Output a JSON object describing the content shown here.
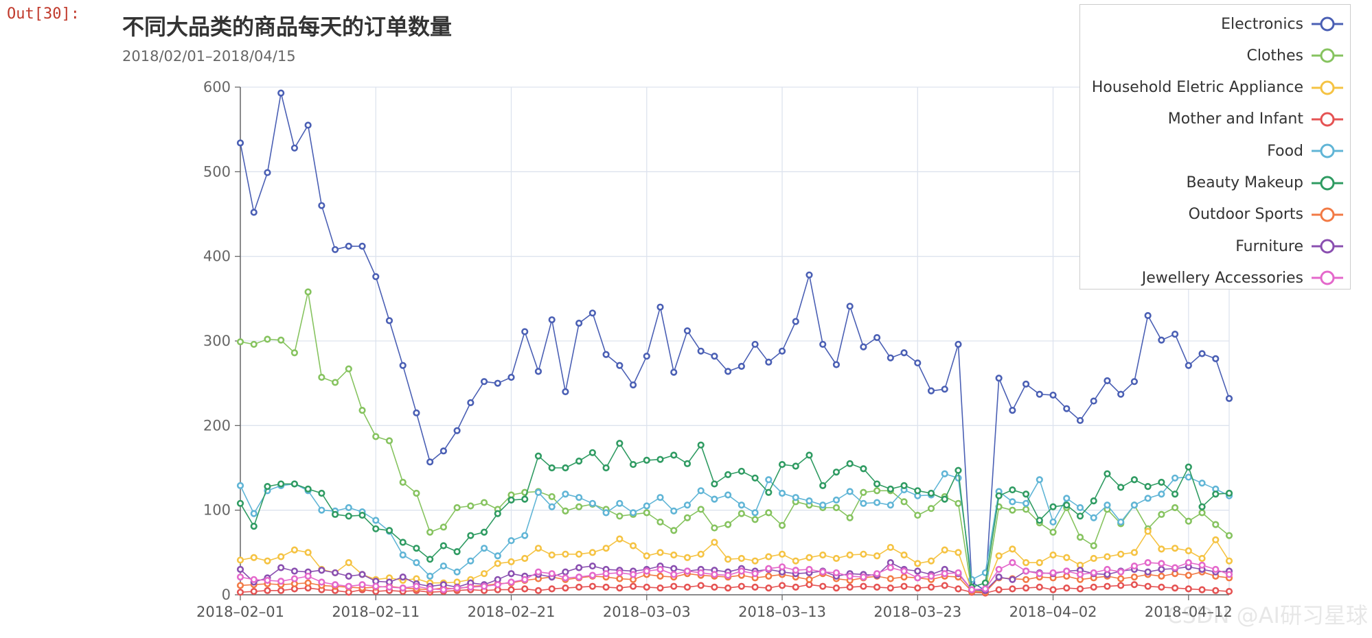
{
  "cell": {
    "prompt": "Out[30]:"
  },
  "watermark": "CSDN @AI研习星球",
  "chart_data": {
    "type": "line",
    "title": "不同大品类的商品每天的订单数量",
    "subtitle": "2018/02/01–2018/04/15",
    "xlabel": "",
    "ylabel": "",
    "ylim": [
      0,
      600
    ],
    "yticks": [
      0,
      100,
      200,
      300,
      400,
      500,
      600
    ],
    "x_start": "2018-02-01",
    "x_count": 74,
    "xtick_labels": [
      "2018–02–01",
      "2018–02–11",
      "2018–02–21",
      "2018–03–03",
      "2018–03–13",
      "2018–03–23",
      "2018–04–02",
      "2018–04–12"
    ],
    "grid": true,
    "legend_position": "top-right",
    "series": [
      {
        "name": "Electronics",
        "color": "#4a5fb4",
        "values": [
          534,
          452,
          499,
          593,
          528,
          555,
          460,
          408,
          412,
          412,
          376,
          324,
          271,
          215,
          157,
          170,
          194,
          227,
          252,
          250,
          257,
          311,
          264,
          325,
          240,
          321,
          333,
          284,
          271,
          248,
          282,
          340,
          263,
          312,
          288,
          282,
          264,
          270,
          296,
          275,
          288,
          323,
          378,
          296,
          272,
          341,
          293,
          304,
          280,
          286,
          274,
          241,
          243,
          296,
          15,
          5,
          256,
          218,
          249,
          237,
          236,
          220,
          206,
          229,
          253,
          237,
          252,
          330,
          301,
          308,
          271,
          285,
          279,
          232
        ]
      },
      {
        "name": "Clothes",
        "color": "#86c35f",
        "values": [
          299,
          296,
          302,
          301,
          286,
          358,
          257,
          251,
          267,
          218,
          187,
          182,
          133,
          120,
          74,
          80,
          103,
          105,
          109,
          101,
          118,
          121,
          122,
          116,
          99,
          104,
          107,
          101,
          93,
          95,
          97,
          86,
          76,
          91,
          101,
          79,
          83,
          96,
          89,
          97,
          82,
          110,
          106,
          103,
          103,
          91,
          121,
          123,
          123,
          110,
          94,
          102,
          116,
          108,
          4,
          4,
          104,
          100,
          101,
          85,
          74,
          103,
          68,
          58,
          101,
          84,
          106,
          78,
          95,
          103,
          87,
          97,
          83,
          70
        ]
      },
      {
        "name": "Household Eletric Appliance",
        "color": "#f5c343",
        "values": [
          41,
          44,
          40,
          45,
          53,
          50,
          30,
          26,
          38,
          24,
          18,
          20,
          17,
          19,
          14,
          14,
          15,
          18,
          25,
          37,
          39,
          43,
          55,
          47,
          48,
          48,
          50,
          55,
          66,
          58,
          46,
          50,
          47,
          44,
          48,
          62,
          42,
          43,
          40,
          45,
          48,
          40,
          44,
          47,
          43,
          47,
          48,
          46,
          56,
          47,
          37,
          40,
          53,
          50,
          5,
          6,
          46,
          54,
          38,
          38,
          47,
          44,
          35,
          43,
          45,
          48,
          50,
          75,
          54,
          55,
          52,
          43,
          65,
          40
        ]
      },
      {
        "name": "Mother and Infant",
        "color": "#e55353",
        "values": [
          3,
          4,
          5,
          5,
          7,
          8,
          6,
          5,
          3,
          6,
          4,
          5,
          4,
          5,
          3,
          4,
          5,
          6,
          5,
          6,
          6,
          7,
          5,
          7,
          8,
          9,
          10,
          9,
          8,
          10,
          9,
          8,
          10,
          9,
          11,
          9,
          8,
          10,
          9,
          8,
          11,
          9,
          12,
          10,
          8,
          9,
          10,
          9,
          8,
          10,
          8,
          9,
          11,
          7,
          3,
          2,
          6,
          7,
          8,
          9,
          6,
          8,
          7,
          9,
          10,
          11,
          12,
          10,
          9,
          8,
          7,
          6,
          5,
          4
        ]
      },
      {
        "name": "Food",
        "color": "#60b5d6",
        "values": [
          129,
          96,
          123,
          129,
          131,
          123,
          100,
          99,
          103,
          98,
          88,
          75,
          47,
          38,
          22,
          34,
          27,
          40,
          55,
          46,
          64,
          70,
          121,
          104,
          119,
          115,
          108,
          97,
          108,
          97,
          105,
          115,
          99,
          106,
          123,
          113,
          118,
          106,
          97,
          136,
          120,
          115,
          111,
          106,
          112,
          122,
          108,
          109,
          106,
          124,
          117,
          118,
          143,
          138,
          18,
          26,
          122,
          110,
          108,
          136,
          86,
          114,
          103,
          91,
          106,
          86,
          106,
          114,
          119,
          138,
          139,
          132,
          125,
          117
        ]
      },
      {
        "name": "Beauty Makeup",
        "color": "#2f9b62",
        "values": [
          108,
          81,
          128,
          131,
          131,
          125,
          120,
          95,
          93,
          94,
          78,
          76,
          62,
          55,
          42,
          58,
          51,
          70,
          74,
          96,
          112,
          113,
          164,
          150,
          150,
          158,
          168,
          150,
          179,
          154,
          159,
          160,
          165,
          155,
          177,
          131,
          142,
          146,
          138,
          121,
          154,
          152,
          165,
          129,
          145,
          155,
          149,
          131,
          125,
          129,
          123,
          120,
          113,
          147,
          9,
          14,
          117,
          124,
          119,
          88,
          104,
          106,
          93,
          111,
          143,
          127,
          136,
          128,
          133,
          119,
          151,
          104,
          119,
          120
        ]
      },
      {
        "name": "Outdoor Sports",
        "color": "#f27a45",
        "values": [
          11,
          12,
          13,
          12,
          13,
          14,
          11,
          10,
          9,
          8,
          9,
          10,
          8,
          7,
          6,
          8,
          7,
          10,
          11,
          13,
          14,
          17,
          19,
          21,
          18,
          20,
          22,
          21,
          19,
          18,
          24,
          22,
          21,
          25,
          23,
          22,
          21,
          23,
          20,
          22,
          24,
          21,
          18,
          25,
          19,
          17,
          20,
          22,
          19,
          21,
          20,
          18,
          22,
          21,
          4,
          3,
          20,
          19,
          18,
          21,
          20,
          22,
          18,
          20,
          22,
          19,
          21,
          24,
          22,
          25,
          23,
          27,
          22,
          20
        ]
      },
      {
        "name": "Furniture",
        "color": "#8a4fb0",
        "values": [
          30,
          15,
          20,
          32,
          28,
          27,
          29,
          26,
          22,
          24,
          16,
          15,
          21,
          13,
          10,
          12,
          9,
          14,
          12,
          18,
          25,
          22,
          24,
          21,
          27,
          32,
          34,
          30,
          29,
          28,
          30,
          34,
          31,
          28,
          30,
          29,
          27,
          31,
          28,
          30,
          27,
          25,
          26,
          28,
          22,
          25,
          24,
          23,
          38,
          30,
          28,
          24,
          30,
          25,
          6,
          5,
          21,
          18,
          28,
          26,
          25,
          28,
          29,
          25,
          24,
          28,
          30,
          27,
          30,
          31,
          33,
          30,
          27,
          28
        ]
      },
      {
        "name": "Jewellery Accessories",
        "color": "#e468cb",
        "values": [
          21,
          18,
          17,
          16,
          19,
          22,
          15,
          12,
          10,
          12,
          10,
          9,
          8,
          10,
          7,
          6,
          8,
          9,
          10,
          12,
          15,
          18,
          27,
          25,
          20,
          21,
          23,
          25,
          26,
          24,
          28,
          30,
          24,
          28,
          26,
          24,
          23,
          28,
          25,
          31,
          33,
          29,
          30,
          27,
          26,
          22,
          21,
          25,
          32,
          28,
          20,
          22,
          25,
          26,
          6,
          7,
          30,
          38,
          28,
          25,
          26,
          28,
          24,
          26,
          30,
          27,
          34,
          38,
          37,
          32,
          38,
          35,
          30,
          24
        ]
      }
    ]
  }
}
